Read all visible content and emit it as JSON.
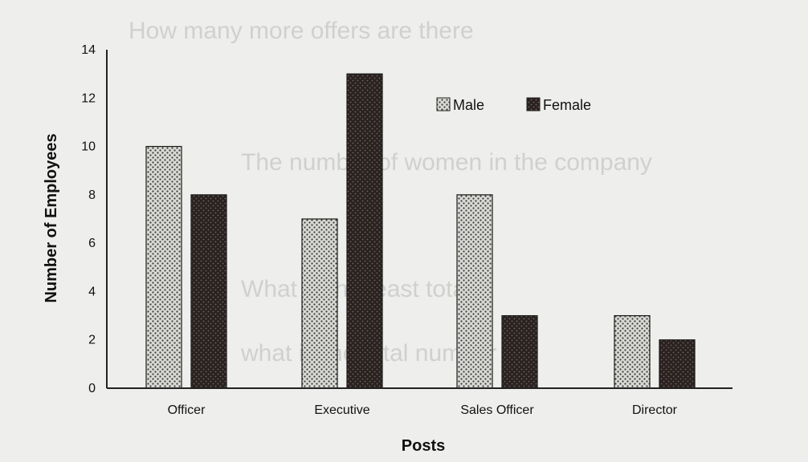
{
  "chart_data": {
    "type": "bar",
    "title": "",
    "xlabel": "Posts",
    "ylabel": "Number of Employees",
    "categories": [
      "Officer",
      "Executive",
      "Sales Officer",
      "Director"
    ],
    "series": [
      {
        "name": "Male",
        "values": [
          10,
          7,
          8,
          3
        ],
        "pattern": "dotted-light"
      },
      {
        "name": "Female",
        "values": [
          8,
          13,
          3,
          2
        ],
        "pattern": "dark"
      }
    ],
    "ylim": [
      0,
      14
    ],
    "yticks": [
      0,
      2,
      4,
      6,
      8,
      10,
      12,
      14
    ],
    "grid": false,
    "legend_position": "top-right",
    "colors": {
      "male_fill": "#d8d8d4",
      "male_dots": "#3a3a38",
      "female_fill": "#2a2220",
      "female_dots": "#6f6460"
    }
  },
  "background_text": [
    "How many more offers are there",
    "The number of women in the company",
    "What is the least total?",
    "what is the total number of"
  ]
}
